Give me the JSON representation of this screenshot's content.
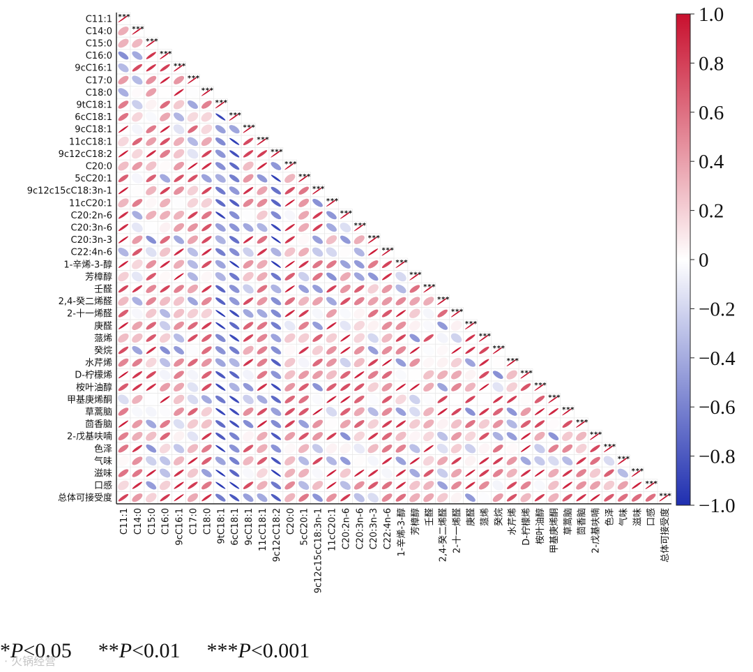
{
  "chart_data": {
    "type": "correlation-ellipse-triangle",
    "variables": [
      "C11:1",
      "C14:0",
      "C15:0",
      "C16:0",
      "9cC16:1",
      "C17:0",
      "C18:0",
      "9tC18:1",
      "6cC18:1",
      "9cC18:1",
      "11cC18:1",
      "9c12cC18:2",
      "C20:0",
      "5cC20:1",
      "9c12c15cC18:3n-1",
      "11cC20:1",
      "C20:2n-6",
      "C20:3n-6",
      "C20:3n-3",
      "C22:4n-6",
      "1-辛烯-3-醇",
      "芳樟醇",
      "壬醛",
      "2,4-癸二烯醛",
      "2-十一烯醛",
      "庚醛",
      "蒎烯",
      "癸烷",
      "水芹烯",
      "D-柠檬烯",
      "桉叶油醇",
      "甲基庚烯酮",
      "草蒿脑",
      "茴香脑",
      "2-戊基呋喃",
      "色泽",
      "气味",
      "滋味",
      "口感",
      "总体可接受度"
    ],
    "diagonal_significance": "***",
    "colorbar": {
      "range": [
        -1.0,
        1.0
      ],
      "ticks": [
        "1.0",
        "0.8",
        "0.6",
        "0.4",
        "0.2",
        "0",
        "−0.2",
        "−0.4",
        "−0.6",
        "−0.8",
        "−1.0"
      ],
      "colors": {
        "positive": "#c8102e",
        "zero": "#ffffff",
        "negative": "#1f2fb0"
      }
    }
  },
  "legend": {
    "items": [
      {
        "stars": "*",
        "p_label": "P",
        "threshold": "<0.05"
      },
      {
        "stars": "**",
        "p_label": "P",
        "threshold": "<0.01"
      },
      {
        "stars": "***",
        "p_label": "P",
        "threshold": "<0.001"
      }
    ]
  },
  "watermark": "· 火锅经营"
}
